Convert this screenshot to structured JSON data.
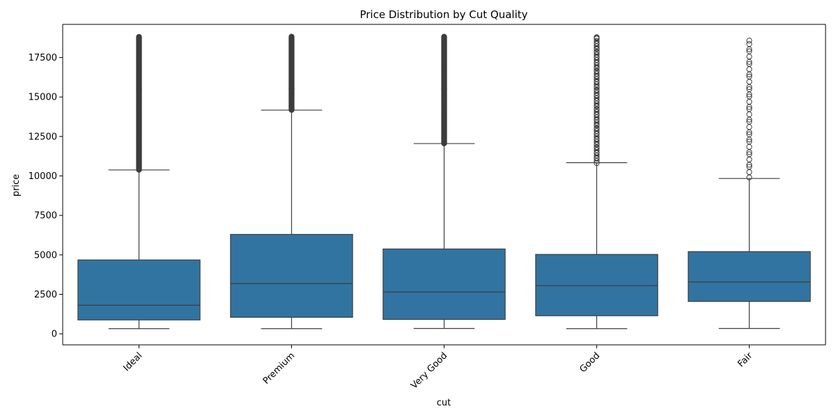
{
  "chart_data": {
    "type": "boxplot",
    "title": "Price Distribution by Cut Quality",
    "xlabel": "cut",
    "ylabel": "price",
    "ylim": [
      -700,
      19600
    ],
    "yticks": [
      0,
      2500,
      5000,
      7500,
      10000,
      12500,
      15000,
      17500
    ],
    "categories": [
      "Ideal",
      "Premium",
      "Very Good",
      "Good",
      "Fair"
    ],
    "box_color": "#3274a1",
    "line_color": "#3d3d3d",
    "boxes": [
      {
        "category": "Ideal",
        "whisker_low": 326,
        "q1": 878,
        "median": 1810,
        "q3": 4678,
        "whisker_high": 10380,
        "outliers_low": 10390,
        "outliers_high": 18806,
        "outlier_style": "dense"
      },
      {
        "category": "Premium",
        "whisker_low": 326,
        "q1": 1046,
        "median": 3185,
        "q3": 6296,
        "whisker_high": 14170,
        "outliers_low": 14180,
        "outliers_high": 18823,
        "outlier_style": "dense"
      },
      {
        "category": "Very Good",
        "whisker_low": 336,
        "q1": 912,
        "median": 2648,
        "q3": 5373,
        "whisker_high": 12050,
        "outliers_low": 12060,
        "outliers_high": 18818,
        "outlier_style": "dense"
      },
      {
        "category": "Good",
        "whisker_low": 327,
        "q1": 1145,
        "median": 3050,
        "q3": 5028,
        "whisker_high": 10840,
        "outliers_low": 10860,
        "outliers_high": 18788,
        "outlier_style": "moderate"
      },
      {
        "category": "Fair",
        "whisker_low": 337,
        "q1": 2050,
        "median": 3282,
        "q3": 5206,
        "whisker_high": 9840,
        "outliers_low": 10010,
        "outliers_high": 18574,
        "outlier_style": "sparse"
      }
    ]
  }
}
